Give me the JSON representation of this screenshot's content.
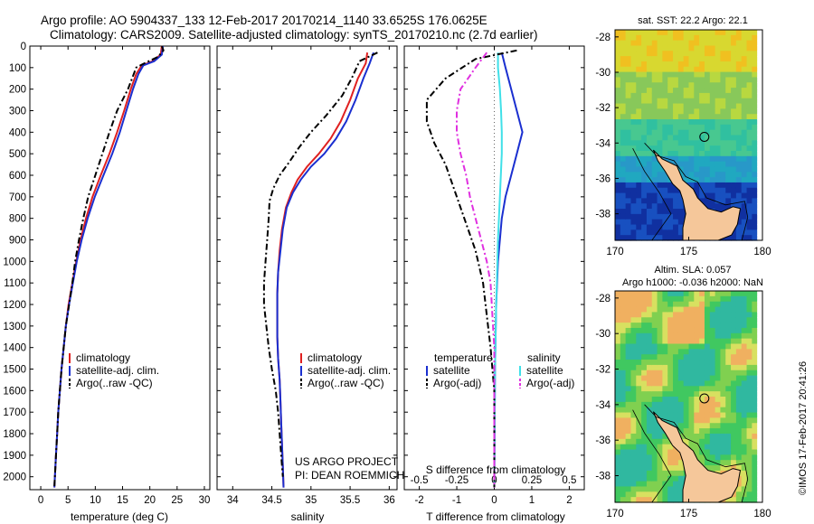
{
  "header": {
    "line1": "Argo profile: AO 5904337_133 12-Feb-2017 20170214_1140 33.6525S 176.0625E",
    "line2": "Climatology: CARS2009. Satellite-adjusted climatology: synTS_20170210.nc (2.7d earlier)"
  },
  "side_text": "©IMOS 17-Feb-2017 20:41:26",
  "colors": {
    "climatology": "#e02020",
    "satellite": "#1a2fd0",
    "argo": "#000000",
    "sal_satellite": "#40e0e8",
    "sal_argo": "#e030e0",
    "land": "#f5c79a"
  },
  "chart_data": [
    {
      "type": "line",
      "id": "temperature",
      "xlabel": "temperature (deg C)",
      "xlim": [
        -2,
        31
      ],
      "xticks": [
        0,
        5,
        10,
        15,
        20,
        25,
        30
      ],
      "ylim": [
        0,
        2060
      ],
      "yticks": [
        0,
        100,
        200,
        300,
        400,
        500,
        600,
        700,
        800,
        900,
        1000,
        1100,
        1200,
        1300,
        1400,
        1500,
        1600,
        1700,
        1800,
        1900,
        2000
      ],
      "legend": [
        "climatology",
        "satellite-adj. clim.",
        "Argo(..raw -QC)"
      ],
      "series": [
        {
          "name": "climatology",
          "style": "solid",
          "color": "#e02020",
          "points": [
            [
              22.2,
              0
            ],
            [
              22.0,
              40
            ],
            [
              20.5,
              70
            ],
            [
              18.5,
              90
            ],
            [
              17.5,
              130
            ],
            [
              16.5,
              200
            ],
            [
              15.3,
              300
            ],
            [
              14.0,
              400
            ],
            [
              12.6,
              500
            ],
            [
              11.0,
              600
            ],
            [
              9.5,
              700
            ],
            [
              8.3,
              800
            ],
            [
              7.3,
              900
            ],
            [
              6.5,
              1000
            ],
            [
              5.8,
              1100
            ],
            [
              5.1,
              1200
            ],
            [
              4.6,
              1300
            ],
            [
              4.2,
              1400
            ],
            [
              3.8,
              1500
            ],
            [
              3.5,
              1600
            ],
            [
              3.2,
              1700
            ],
            [
              3.0,
              1800
            ],
            [
              2.8,
              1900
            ],
            [
              2.6,
              2000
            ],
            [
              2.5,
              2050
            ]
          ]
        },
        {
          "name": "satellite-adj. clim.",
          "style": "solid",
          "color": "#1a2fd0",
          "points": [
            [
              22.4,
              0
            ],
            [
              22.2,
              40
            ],
            [
              20.8,
              70
            ],
            [
              18.8,
              90
            ],
            [
              17.9,
              130
            ],
            [
              16.9,
              200
            ],
            [
              15.7,
              300
            ],
            [
              14.5,
              400
            ],
            [
              13.1,
              500
            ],
            [
              11.5,
              600
            ],
            [
              9.9,
              700
            ],
            [
              8.6,
              800
            ],
            [
              7.5,
              900
            ],
            [
              6.6,
              1000
            ],
            [
              5.9,
              1100
            ],
            [
              5.2,
              1200
            ],
            [
              4.6,
              1300
            ],
            [
              4.2,
              1400
            ],
            [
              3.8,
              1500
            ],
            [
              3.5,
              1600
            ],
            [
              3.2,
              1700
            ],
            [
              3.0,
              1800
            ],
            [
              2.8,
              1900
            ],
            [
              2.6,
              2000
            ],
            [
              2.5,
              2050
            ]
          ]
        },
        {
          "name": "Argo(..raw -QC)",
          "style": "dashdot",
          "color": "#000000",
          "points": [
            [
              22.2,
              0
            ],
            [
              22.5,
              20
            ],
            [
              21.5,
              50
            ],
            [
              19.0,
              80
            ],
            [
              17.5,
              100
            ],
            [
              16.0,
              200
            ],
            [
              14.0,
              300
            ],
            [
              12.6,
              400
            ],
            [
              11.3,
              500
            ],
            [
              10.0,
              600
            ],
            [
              8.7,
              700
            ],
            [
              7.8,
              800
            ],
            [
              7.0,
              900
            ],
            [
              6.3,
              1000
            ],
            [
              5.8,
              1100
            ],
            [
              5.2,
              1200
            ],
            [
              4.6,
              1300
            ],
            [
              4.2,
              1400
            ],
            [
              3.8,
              1500
            ],
            [
              3.5,
              1600
            ],
            [
              3.2,
              1700
            ],
            [
              3.0,
              1800
            ],
            [
              2.8,
              1900
            ],
            [
              2.6,
              2000
            ],
            [
              2.5,
              2050
            ]
          ]
        }
      ]
    },
    {
      "type": "line",
      "id": "salinity",
      "xlabel": "salinity",
      "xlim": [
        33.8,
        36.1
      ],
      "xticks": [
        34,
        34.5,
        35,
        35.5,
        36
      ],
      "ylim": [
        0,
        2060
      ],
      "legend": [
        "climatology",
        "satellite-adj. clim.",
        "Argo(..raw -QC)"
      ],
      "annotation": [
        "US ARGO PROJECT",
        "PI: DEAN ROEMMICH"
      ],
      "series": [
        {
          "name": "climatology",
          "style": "solid",
          "color": "#e02020",
          "points": [
            [
              35.72,
              30
            ],
            [
              35.7,
              80
            ],
            [
              35.6,
              150
            ],
            [
              35.5,
              250
            ],
            [
              35.38,
              350
            ],
            [
              35.25,
              430
            ],
            [
              35.1,
              500
            ],
            [
              34.95,
              560
            ],
            [
              34.83,
              620
            ],
            [
              34.75,
              680
            ],
            [
              34.68,
              750
            ],
            [
              34.63,
              850
            ],
            [
              34.6,
              950
            ],
            [
              34.58,
              1050
            ],
            [
              34.57,
              1150
            ],
            [
              34.57,
              1250
            ],
            [
              34.57,
              1350
            ],
            [
              34.58,
              1450
            ],
            [
              34.6,
              1550
            ],
            [
              34.61,
              1650
            ],
            [
              34.62,
              1750
            ],
            [
              34.63,
              1850
            ],
            [
              34.64,
              1950
            ],
            [
              34.65,
              2050
            ]
          ]
        },
        {
          "name": "satellite-adj. clim.",
          "style": "solid",
          "color": "#1a2fd0",
          "points": [
            [
              35.8,
              30
            ],
            [
              35.75,
              80
            ],
            [
              35.67,
              150
            ],
            [
              35.57,
              250
            ],
            [
              35.45,
              350
            ],
            [
              35.32,
              430
            ],
            [
              35.17,
              500
            ],
            [
              35.0,
              560
            ],
            [
              34.87,
              620
            ],
            [
              34.77,
              680
            ],
            [
              34.69,
              750
            ],
            [
              34.64,
              850
            ],
            [
              34.61,
              950
            ],
            [
              34.58,
              1050
            ],
            [
              34.57,
              1150
            ],
            [
              34.57,
              1250
            ],
            [
              34.57,
              1350
            ],
            [
              34.58,
              1450
            ],
            [
              34.6,
              1550
            ],
            [
              34.61,
              1650
            ],
            [
              34.62,
              1750
            ],
            [
              34.63,
              1850
            ],
            [
              34.64,
              1950
            ],
            [
              34.65,
              2050
            ]
          ]
        },
        {
          "name": "Argo(..raw -QC)",
          "style": "dashdot",
          "color": "#000000",
          "points": [
            [
              35.85,
              30
            ],
            [
              35.62,
              70
            ],
            [
              35.52,
              150
            ],
            [
              35.4,
              230
            ],
            [
              35.2,
              320
            ],
            [
              35.0,
              400
            ],
            [
              34.85,
              470
            ],
            [
              34.72,
              540
            ],
            [
              34.6,
              600
            ],
            [
              34.52,
              660
            ],
            [
              34.47,
              720
            ],
            [
              34.46,
              800
            ],
            [
              34.44,
              900
            ],
            [
              34.42,
              1000
            ],
            [
              34.4,
              1100
            ],
            [
              34.4,
              1200
            ],
            [
              34.43,
              1300
            ],
            [
              34.46,
              1400
            ],
            [
              34.5,
              1500
            ],
            [
              34.55,
              1600
            ],
            [
              34.58,
              1700
            ],
            [
              34.6,
              1800
            ],
            [
              34.62,
              1900
            ],
            [
              34.64,
              2000
            ]
          ]
        }
      ]
    },
    {
      "type": "line",
      "id": "difference",
      "xlabel": "T difference from climatology",
      "xlabel_top": "S difference from climatology",
      "xlim": [
        -2.4,
        2.4
      ],
      "xticks": [
        -2,
        -1,
        0,
        1,
        2
      ],
      "xticks_top": [
        "-0.5",
        "-0.25",
        "0",
        "0.25",
        "0.5"
      ],
      "ylim": [
        0,
        2060
      ],
      "legend_titles": [
        "temperature",
        "salinity"
      ],
      "legend": [
        "satellite",
        "Argo(-adj)",
        "satellite",
        "Argo(-adj)"
      ],
      "series": [
        {
          "name": "temperature satellite",
          "style": "solid",
          "color": "#1a2fd0",
          "points": [
            [
              0.2,
              30
            ],
            [
              0.3,
              100
            ],
            [
              0.45,
              200
            ],
            [
              0.6,
              300
            ],
            [
              0.75,
              400
            ],
            [
              0.6,
              500
            ],
            [
              0.45,
              600
            ],
            [
              0.3,
              700
            ],
            [
              0.2,
              800
            ],
            [
              0.15,
              900
            ],
            [
              0.1,
              1000
            ],
            [
              0.05,
              1200
            ],
            [
              0.02,
              1500
            ],
            [
              0,
              2050
            ]
          ]
        },
        {
          "name": "salinity satellite",
          "style": "solid",
          "color": "#40e0e8",
          "points": [
            [
              0.1,
              30
            ],
            [
              0.1,
              100
            ],
            [
              0.15,
              200
            ],
            [
              0.18,
              300
            ],
            [
              0.2,
              400
            ],
            [
              0.2,
              500
            ],
            [
              0.15,
              700
            ],
            [
              0.1,
              900
            ],
            [
              0.05,
              1200
            ],
            [
              0.02,
              1500
            ],
            [
              0,
              2050
            ]
          ]
        },
        {
          "name": "temperature Argo(-adj)",
          "style": "dashdot",
          "color": "#000000",
          "points": [
            [
              0.6,
              20
            ],
            [
              -0.5,
              60
            ],
            [
              -1.3,
              150
            ],
            [
              -1.8,
              250
            ],
            [
              -1.8,
              350
            ],
            [
              -1.6,
              450
            ],
            [
              -1.3,
              550
            ],
            [
              -1.1,
              650
            ],
            [
              -0.9,
              750
            ],
            [
              -0.7,
              850
            ],
            [
              -0.5,
              950
            ],
            [
              -0.3,
              1100
            ],
            [
              -0.2,
              1250
            ],
            [
              -0.1,
              1400
            ],
            [
              0,
              1600
            ],
            [
              0,
              2050
            ]
          ]
        },
        {
          "name": "salinity Argo(-adj)",
          "style": "dashdot",
          "color": "#e030e0",
          "points": [
            [
              -0.2,
              30
            ],
            [
              -0.5,
              100
            ],
            [
              -0.9,
              200
            ],
            [
              -1.0,
              300
            ],
            [
              -1.0,
              400
            ],
            [
              -0.9,
              500
            ],
            [
              -0.75,
              600
            ],
            [
              -0.65,
              700
            ],
            [
              -0.5,
              800
            ],
            [
              -0.35,
              900
            ],
            [
              -0.2,
              1000
            ],
            [
              -0.1,
              1100
            ],
            [
              -0.05,
              1250
            ],
            [
              0,
              1400
            ],
            [
              0,
              2050
            ]
          ]
        }
      ]
    },
    {
      "type": "heatmap",
      "id": "sst-map",
      "title": "sat. SST: 22.2 Argo: 22.1",
      "xlim": [
        170,
        180
      ],
      "ylim": [
        -39.5,
        -27.6
      ],
      "xticks": [
        170,
        175,
        180
      ],
      "yticks": [
        -28,
        -30,
        -32,
        -34,
        -36,
        -38
      ],
      "argo_position": [
        176.06,
        -33.65
      ]
    },
    {
      "type": "heatmap",
      "id": "sla-map",
      "title_lines": [
        "Altim. SLA: 0.057",
        "Argo h1000: -0.036 h2000: NaN"
      ],
      "xlim": [
        170,
        180
      ],
      "ylim": [
        -39.5,
        -27.6
      ],
      "xticks": [
        170,
        175,
        180
      ],
      "yticks": [
        -28,
        -30,
        -32,
        -34,
        -36,
        -38
      ],
      "argo_position": [
        176.06,
        -33.65
      ]
    }
  ]
}
